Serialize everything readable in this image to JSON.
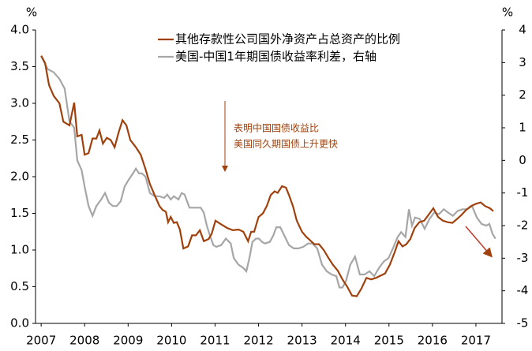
{
  "chart_data": {
    "type": "line",
    "y_unit_left": "%",
    "y_unit_right": "%",
    "annotations": [
      "表明中国国债收益比",
      "美国同久期国债上升更快"
    ],
    "xlim": [
      2006.87,
      2017.6
    ],
    "xticks": [
      2007,
      2008,
      2009,
      2010,
      2011,
      2012,
      2013,
      2014,
      2015,
      2016,
      2017
    ],
    "ylim": [
      0,
      4
    ],
    "yticks": [
      {
        "value": 0,
        "label": "0.0"
      },
      {
        "value": 0.5,
        "label": "0.5"
      },
      {
        "value": 1,
        "label": "1.0"
      },
      {
        "value": 1.5,
        "label": "1.5"
      },
      {
        "value": 2,
        "label": "2.0"
      },
      {
        "value": 2.5,
        "label": "2.5"
      },
      {
        "value": 3,
        "label": "3.0"
      },
      {
        "value": 3.5,
        "label": "3.5"
      },
      {
        "value": 4,
        "label": "4.0"
      }
    ],
    "y2lim": [
      -5,
      4
    ],
    "y2ticks": [
      4,
      3,
      2,
      1,
      0,
      -1,
      -2,
      -3,
      -4,
      -5
    ],
    "legend": "top",
    "series": [
      {
        "name": "其他存款性公司国外净资产占总资产的比例",
        "color": "#a0410d",
        "x": [
          2007.0,
          2007.09,
          2007.18,
          2007.29,
          2007.42,
          2007.51,
          2007.65,
          2007.76,
          2007.83,
          2007.93,
          2008.0,
          2008.09,
          2008.18,
          2008.27,
          2008.34,
          2008.42,
          2008.51,
          2008.6,
          2008.69,
          2008.78,
          2008.87,
          2008.96,
          2009.05,
          2009.18,
          2009.29,
          2009.4,
          2009.5,
          2009.61,
          2009.72,
          2009.79,
          2009.87,
          2009.92,
          2009.98,
          2010.05,
          2010.12,
          2010.19,
          2010.27,
          2010.38,
          2010.47,
          2010.56,
          2010.65,
          2010.74,
          2010.85,
          2010.92,
          2011.01,
          2011.14,
          2011.28,
          2011.41,
          2011.54,
          2011.65,
          2011.76,
          2011.83,
          2011.9,
          2012.0,
          2012.1,
          2012.19,
          2012.28,
          2012.37,
          2012.44,
          2012.54,
          2012.63,
          2012.7,
          2012.79,
          2012.88,
          2013.0,
          2013.1,
          2013.21,
          2013.28,
          2013.39,
          2013.5,
          2013.6,
          2013.71,
          2013.82,
          2013.93,
          2014.04,
          2014.15,
          2014.26,
          2014.37,
          2014.48,
          2014.59,
          2014.7,
          2014.8,
          2014.91,
          2015.02,
          2015.13,
          2015.22,
          2015.31,
          2015.4,
          2015.49,
          2015.59,
          2015.7,
          2015.81,
          2015.91,
          2016.02,
          2016.13,
          2016.24,
          2016.35,
          2016.46,
          2016.56,
          2016.67,
          2016.78,
          2016.89,
          2017.0,
          2017.11,
          2017.21,
          2017.32,
          2017.4
        ],
        "values": [
          3.65,
          3.55,
          3.25,
          3.1,
          3.0,
          2.75,
          2.7,
          3.01,
          2.55,
          2.57,
          2.3,
          2.32,
          2.52,
          2.52,
          2.63,
          2.45,
          2.53,
          2.5,
          2.4,
          2.6,
          2.77,
          2.7,
          2.5,
          2.4,
          2.3,
          2.1,
          1.9,
          1.75,
          1.6,
          1.55,
          1.52,
          1.38,
          1.45,
          1.37,
          1.38,
          1.28,
          1.02,
          1.05,
          1.2,
          1.2,
          1.27,
          1.12,
          1.15,
          1.22,
          1.4,
          1.35,
          1.3,
          1.27,
          1.28,
          1.25,
          1.12,
          1.25,
          1.25,
          1.45,
          1.5,
          1.6,
          1.75,
          1.8,
          1.78,
          1.87,
          1.85,
          1.75,
          1.6,
          1.4,
          1.25,
          1.18,
          1.12,
          1.08,
          1.08,
          1.0,
          0.9,
          0.8,
          0.72,
          0.6,
          0.5,
          0.38,
          0.37,
          0.48,
          0.62,
          0.6,
          0.62,
          0.65,
          0.68,
          0.8,
          0.97,
          1.12,
          1.05,
          1.08,
          1.15,
          1.3,
          1.38,
          1.4,
          1.48,
          1.57,
          1.45,
          1.4,
          1.38,
          1.37,
          1.42,
          1.48,
          1.55,
          1.6,
          1.63,
          1.65,
          1.6,
          1.57,
          1.53
        ]
      },
      {
        "name": "美国-中国1年期国债收益率利差，右轴",
        "color": "#a6a6a6",
        "axis": "y2",
        "x": [
          2007.0,
          2007.15,
          2007.29,
          2007.42,
          2007.54,
          2007.65,
          2007.76,
          2007.83,
          2007.93,
          2008.0,
          2008.09,
          2008.18,
          2008.27,
          2008.38,
          2008.47,
          2008.56,
          2008.65,
          2008.74,
          2008.83,
          2008.92,
          2009.01,
          2009.11,
          2009.18,
          2009.25,
          2009.32,
          2009.4,
          2009.5,
          2009.61,
          2009.72,
          2009.83,
          2009.9,
          2009.98,
          2010.05,
          2010.16,
          2010.23,
          2010.3,
          2010.41,
          2010.56,
          2010.67,
          2010.74,
          2010.81,
          2010.88,
          2010.96,
          2011.03,
          2011.14,
          2011.25,
          2011.36,
          2011.43,
          2011.54,
          2011.65,
          2011.72,
          2011.79,
          2011.86,
          2011.94,
          2012.01,
          2012.08,
          2012.15,
          2012.26,
          2012.34,
          2012.41,
          2012.5,
          2012.59,
          2012.7,
          2012.81,
          2012.92,
          2013.03,
          2013.14,
          2013.24,
          2013.35,
          2013.46,
          2013.57,
          2013.68,
          2013.79,
          2013.86,
          2013.93,
          2014.01,
          2014.11,
          2014.22,
          2014.33,
          2014.44,
          2014.55,
          2014.66,
          2014.77,
          2014.88,
          2014.99,
          2015.09,
          2015.2,
          2015.28,
          2015.38,
          2015.46,
          2015.53,
          2015.6,
          2015.71,
          2015.82,
          2015.93,
          2016.04,
          2016.15,
          2016.26,
          2016.36,
          2016.47,
          2016.58,
          2016.69,
          2016.8,
          2016.91,
          2017.02,
          2017.13,
          2017.24,
          2017.31,
          2017.38,
          2017.45
        ],
        "values": [
          3.2,
          2.8,
          2.7,
          2.5,
          2.2,
          1.2,
          1.0,
          0.0,
          -0.3,
          -0.8,
          -1.4,
          -1.7,
          -1.4,
          -1.2,
          -1.0,
          -1.3,
          -1.4,
          -1.4,
          -1.25,
          -0.8,
          -0.6,
          -0.4,
          -0.25,
          -0.4,
          -0.4,
          -0.5,
          -1.0,
          -1.1,
          -1.1,
          -1.15,
          -1.05,
          -1.2,
          -1.1,
          -1.2,
          -1.0,
          -1.05,
          -1.45,
          -1.45,
          -1.45,
          -1.6,
          -2.0,
          -2.3,
          -2.6,
          -2.65,
          -2.6,
          -2.4,
          -2.55,
          -3.0,
          -3.2,
          -3.3,
          -3.4,
          -3.0,
          -2.5,
          -2.4,
          -2.4,
          -2.5,
          -2.55,
          -2.5,
          -2.3,
          -2.05,
          -2.05,
          -2.3,
          -2.6,
          -2.7,
          -2.7,
          -2.65,
          -2.55,
          -2.55,
          -2.7,
          -3.2,
          -3.4,
          -3.5,
          -3.55,
          -3.9,
          -3.9,
          -3.7,
          -3.2,
          -2.95,
          -3.5,
          -3.5,
          -3.4,
          -3.55,
          -3.3,
          -3.1,
          -3.0,
          -2.7,
          -2.35,
          -2.2,
          -2.35,
          -1.5,
          -2.0,
          -1.75,
          -1.8,
          -2.1,
          -1.8,
          -1.6,
          -1.65,
          -1.5,
          -1.6,
          -1.7,
          -1.55,
          -1.5,
          -1.5,
          -1.4,
          -1.75,
          -1.95,
          -2.0,
          -1.95,
          -2.25,
          -2.4
        ]
      }
    ]
  }
}
